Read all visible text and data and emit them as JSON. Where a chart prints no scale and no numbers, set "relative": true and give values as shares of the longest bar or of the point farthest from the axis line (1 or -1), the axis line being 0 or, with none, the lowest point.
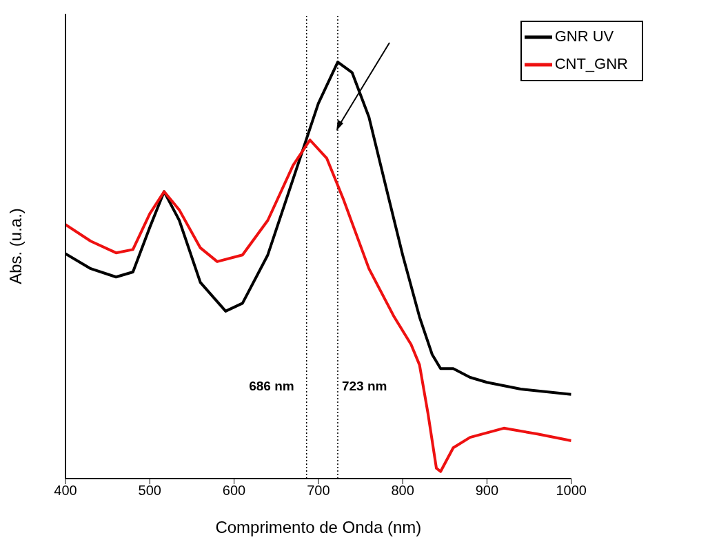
{
  "chart_data": {
    "type": "line",
    "xlabel": "Comprimento de Onda (nm)",
    "ylabel": "Abs. (u.a.)",
    "relative": true,
    "xlim": [
      400,
      1000
    ],
    "xticks": [
      400,
      500,
      600,
      700,
      800,
      900,
      1000
    ],
    "legend": "top right",
    "grid": false,
    "marker": "none",
    "line_style": "solid",
    "ref_lines": [
      {
        "axis": "x",
        "value": 686,
        "label": "686 nm",
        "line_style": "dotted",
        "color": "#000000"
      },
      {
        "axis": "x",
        "value": 723,
        "label": "723 nm",
        "line_style": "dotted",
        "color": "#000000"
      }
    ],
    "series": [
      {
        "name": "GNR UV",
        "color": "#000000",
        "x": [
          400,
          430,
          460,
          480,
          500,
          517,
          535,
          560,
          590,
          610,
          640,
          670,
          700,
          723,
          740,
          760,
          780,
          800,
          820,
          835,
          845,
          860,
          880,
          900,
          940,
          1000
        ],
        "values": [
          0.54,
          0.504,
          0.484,
          0.496,
          0.603,
          0.689,
          0.62,
          0.471,
          0.402,
          0.421,
          0.537,
          0.719,
          0.901,
          1.0,
          0.975,
          0.868,
          0.702,
          0.537,
          0.388,
          0.298,
          0.264,
          0.264,
          0.243,
          0.231,
          0.215,
          0.202
        ]
      },
      {
        "name": "CNT_GNR",
        "color": "#ee1111",
        "x": [
          400,
          430,
          460,
          480,
          500,
          517,
          535,
          560,
          580,
          610,
          640,
          670,
          690,
          710,
          730,
          760,
          790,
          810,
          820,
          830,
          840,
          845,
          860,
          880,
          920,
          960,
          1000
        ],
        "values": [
          0.61,
          0.57,
          0.542,
          0.55,
          0.636,
          0.689,
          0.645,
          0.554,
          0.521,
          0.537,
          0.62,
          0.752,
          0.813,
          0.769,
          0.669,
          0.504,
          0.388,
          0.322,
          0.273,
          0.157,
          0.025,
          0.017,
          0.074,
          0.099,
          0.121,
          0.107,
          0.091
        ]
      }
    ]
  }
}
